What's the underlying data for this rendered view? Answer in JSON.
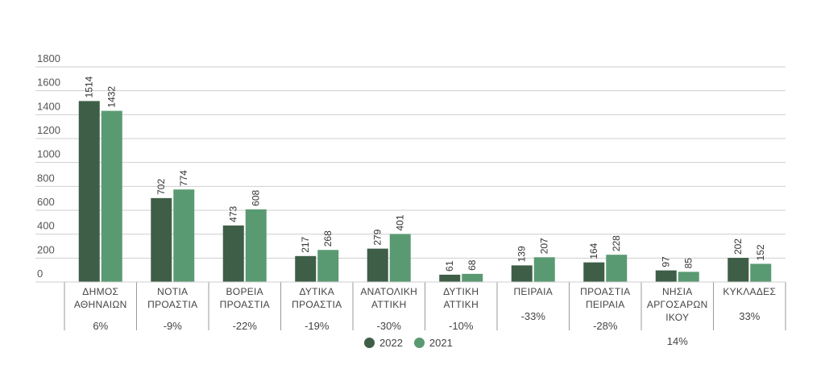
{
  "chart_data": {
    "type": "bar",
    "title": "",
    "xlabel": "",
    "ylabel": "",
    "ylim": [
      0,
      1800
    ],
    "yticks": [
      0,
      200,
      400,
      600,
      800,
      1000,
      1200,
      1400,
      1600,
      1800
    ],
    "grid": true,
    "legend_position": "bottom-center",
    "categories": [
      [
        "ΔΗΜΟΣ",
        "ΑΘΗΝΑΙΩΝ"
      ],
      [
        "ΝΟΤΙΑ",
        "ΠΡΟΑΣΤΙΑ"
      ],
      [
        "ΒΟΡΕΙΑ",
        "ΠΡΟΑΣΤΙΑ"
      ],
      [
        "ΔΥΤΙΚΑ",
        "ΠΡΟΑΣΤΙΑ"
      ],
      [
        "ΑΝΑΤΟΛΙΚΗ",
        "ΑΤΤΙΚΗ"
      ],
      [
        "ΔΥΤΙΚΗ",
        "ΑΤΤΙΚΗ"
      ],
      [
        "ΠΕΙΡΑΙΑ"
      ],
      [
        "ΠΡΟΑΣΤΙΑ",
        "ΠΕΙΡΑΙΑ"
      ],
      [
        "ΝΗΣΙΑ",
        "ΑΡΓΟΣΑΡΩΝ",
        "ΙΚΟΥ"
      ],
      [
        "ΚΥΚΛΑΔΕΣ"
      ]
    ],
    "changes": [
      "6%",
      "-9%",
      "-22%",
      "-19%",
      "-30%",
      "-10%",
      "-33%",
      "-28%",
      "14%",
      "33%"
    ],
    "series": [
      {
        "name": "2022",
        "color": "#3f5e48",
        "values": [
          1514,
          702,
          473,
          217,
          279,
          61,
          139,
          164,
          97,
          202
        ]
      },
      {
        "name": "2021",
        "color": "#5a9a72",
        "values": [
          1432,
          774,
          608,
          268,
          401,
          68,
          207,
          228,
          85,
          152
        ]
      }
    ]
  }
}
